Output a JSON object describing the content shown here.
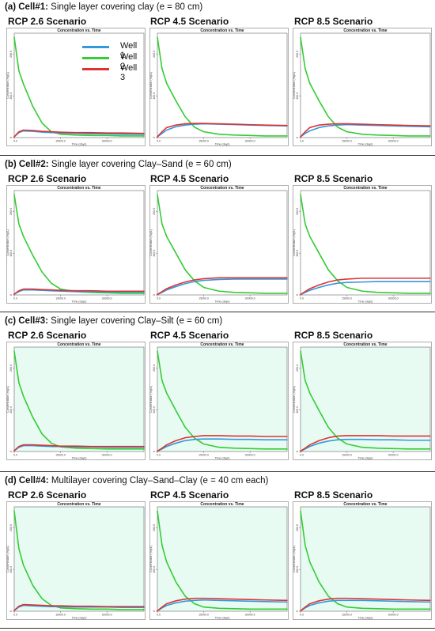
{
  "colors": {
    "well1": "#3399dd",
    "well2": "#33cc33",
    "well3": "#dd3333",
    "panel_fill_cell3": "#e8fbf3",
    "panel_fill_cell4": "#e8fbf3"
  },
  "legend": {
    "well1": "Well 1",
    "well2": "Well 2",
    "well3": "Well 3"
  },
  "plot_title": "Concentration vs. Time",
  "y_axis_label": "Concentration (mg/L)",
  "x_axis_label": "Time (days)",
  "scenarios": [
    "RCP 2.6 Scenario",
    "RCP 4.5 Scenario",
    "RCP 8.5 Scenario"
  ],
  "sections": [
    {
      "label": "(a) Cell",
      "num": "#1:",
      "desc": "Single layer covering clay (e = 80 cm)"
    },
    {
      "label": "(b) Cell",
      "num": "#2:",
      "desc": "Single layer covering Clay–Sand (e = 60 cm)"
    },
    {
      "label": "(c) Cell",
      "num": "#3:",
      "desc": "Single layer covering Clay–Silt (e = 60 cm)"
    },
    {
      "label": "(d) Cell",
      "num": "#4:",
      "desc": "Multilayer covering Clay–Sand–Clay (e = 40 cm each)"
    }
  ],
  "chart_data": [
    {
      "cell": "Cell#1",
      "scenario": "RCP 2.6 Scenario",
      "type": "line",
      "title": "Concentration vs. Time",
      "xlabel": "Time (days)",
      "ylabel": "Concentration (mg/L)",
      "x_ticks": [
        "0.0",
        "15000.0",
        "30000.0"
      ],
      "y_ticks": [
        "0",
        "100.0",
        "200.0"
      ],
      "xlim": [
        0,
        42000
      ],
      "ylim": [
        0,
        250
      ],
      "x": [
        0,
        1500,
        3000,
        6000,
        9000,
        12000,
        15000,
        20000,
        25000,
        30000,
        35000,
        42000
      ],
      "series": [
        {
          "name": "Well 1",
          "values": [
            2,
            12,
            16,
            15,
            13,
            12,
            11,
            10,
            9,
            9,
            8,
            8
          ]
        },
        {
          "name": "Well 2",
          "values": [
            240,
            160,
            128,
            75,
            35,
            14,
            8,
            6,
            5,
            5,
            4,
            4
          ]
        },
        {
          "name": "Well 3",
          "values": [
            2,
            14,
            18,
            17,
            15,
            14,
            13,
            12,
            12,
            11,
            11,
            10
          ]
        }
      ]
    },
    {
      "cell": "Cell#1",
      "scenario": "RCP 4.5 Scenario",
      "type": "line",
      "title": "Concentration vs. Time",
      "xlabel": "Time (days)",
      "ylabel": "Concentration (mg/L)",
      "x_ticks": [
        "0.0",
        "15000.0",
        "30000.0"
      ],
      "y_ticks": [
        "0",
        "100.0",
        "200.0"
      ],
      "xlim": [
        0,
        42000
      ],
      "ylim": [
        0,
        250
      ],
      "x": [
        0,
        1500,
        3000,
        6000,
        9000,
        12000,
        15000,
        20000,
        25000,
        30000,
        35000,
        42000
      ],
      "series": [
        {
          "name": "Well 1",
          "values": [
            2,
            10,
            18,
            26,
            30,
            32,
            33,
            32,
            31,
            30,
            29,
            28
          ]
        },
        {
          "name": "Well 2",
          "values": [
            240,
            165,
            130,
            88,
            50,
            25,
            14,
            8,
            6,
            5,
            4,
            4
          ]
        },
        {
          "name": "Well 3",
          "values": [
            2,
            14,
            24,
            30,
            33,
            34,
            34,
            33,
            32,
            31,
            30,
            29
          ]
        }
      ]
    },
    {
      "cell": "Cell#1",
      "scenario": "RCP 8.5 Scenario",
      "type": "line",
      "title": "Concentration vs. Time",
      "xlabel": "Time (days)",
      "ylabel": "Concentration (mg/L)",
      "x_ticks": [
        "0.0",
        "15000.0",
        "30000.0"
      ],
      "y_ticks": [
        "0",
        "100.0",
        "200.0"
      ],
      "xlim": [
        0,
        42000
      ],
      "ylim": [
        0,
        250
      ],
      "x": [
        0,
        1500,
        3000,
        6000,
        9000,
        12000,
        15000,
        20000,
        25000,
        30000,
        35000,
        42000
      ],
      "series": [
        {
          "name": "Well 1",
          "values": [
            2,
            10,
            16,
            24,
            28,
            30,
            31,
            30,
            29,
            28,
            27,
            26
          ]
        },
        {
          "name": "Well 2",
          "values": [
            240,
            165,
            130,
            88,
            50,
            25,
            14,
            8,
            6,
            5,
            4,
            4
          ]
        },
        {
          "name": "Well 3",
          "values": [
            2,
            14,
            24,
            30,
            32,
            33,
            33,
            32,
            31,
            30,
            29,
            28
          ]
        }
      ]
    },
    {
      "cell": "Cell#2",
      "scenario": "RCP 2.6 Scenario",
      "type": "line",
      "title": "Concentration vs. Time",
      "xlabel": "Time (days)",
      "ylabel": "Concentration (mg/L)",
      "x_ticks": [
        "0.0",
        "15000.0",
        "30000.0"
      ],
      "y_ticks": [
        "0",
        "100.0",
        "200.0"
      ],
      "xlim": [
        0,
        42000
      ],
      "ylim": [
        0,
        250
      ],
      "x": [
        0,
        1500,
        3000,
        6000,
        9000,
        12000,
        15000,
        20000,
        25000,
        30000,
        35000,
        42000
      ],
      "series": [
        {
          "name": "Well 1",
          "values": [
            2,
            8,
            12,
            12,
            11,
            10,
            9,
            8,
            8,
            7,
            7,
            7
          ]
        },
        {
          "name": "Well 2",
          "values": [
            240,
            170,
            140,
            95,
            55,
            28,
            14,
            8,
            6,
            5,
            4,
            4
          ]
        },
        {
          "name": "Well 3",
          "values": [
            2,
            10,
            14,
            14,
            13,
            12,
            11,
            10,
            10,
            9,
            9,
            9
          ]
        }
      ]
    },
    {
      "cell": "Cell#2",
      "scenario": "RCP 4.5 Scenario",
      "type": "line",
      "title": "Concentration vs. Time",
      "xlabel": "Time (days)",
      "ylabel": "Concentration (mg/L)",
      "x_ticks": [
        "0.0",
        "15000.0",
        "30000.0"
      ],
      "y_ticks": [
        "0",
        "100.0",
        "200.0"
      ],
      "xlim": [
        0,
        42000
      ],
      "ylim": [
        0,
        250
      ],
      "x": [
        0,
        1500,
        3000,
        6000,
        9000,
        12000,
        15000,
        20000,
        25000,
        30000,
        35000,
        42000
      ],
      "series": [
        {
          "name": "Well 1",
          "values": [
            1,
            6,
            12,
            20,
            27,
            32,
            35,
            37,
            38,
            38,
            38,
            38
          ]
        },
        {
          "name": "Well 2",
          "values": [
            240,
            170,
            140,
            100,
            60,
            34,
            18,
            9,
            6,
            5,
            4,
            4
          ]
        },
        {
          "name": "Well 3",
          "values": [
            1,
            8,
            15,
            24,
            31,
            36,
            39,
            41,
            41,
            41,
            41,
            41
          ]
        }
      ]
    },
    {
      "cell": "Cell#2",
      "scenario": "RCP 8.5 Scenario",
      "type": "line",
      "title": "Concentration vs. Time",
      "xlabel": "Time (days)",
      "ylabel": "Concentration (mg/L)",
      "x_ticks": [
        "0.0",
        "15000.0",
        "30000.0"
      ],
      "y_ticks": [
        "0",
        "100.0",
        "200.0"
      ],
      "xlim": [
        0,
        42000
      ],
      "ylim": [
        0,
        250
      ],
      "x": [
        0,
        1500,
        3000,
        6000,
        9000,
        12000,
        15000,
        20000,
        25000,
        30000,
        35000,
        42000
      ],
      "series": [
        {
          "name": "Well 1",
          "values": [
            1,
            6,
            11,
            18,
            24,
            28,
            30,
            31,
            32,
            32,
            32,
            32
          ]
        },
        {
          "name": "Well 2",
          "values": [
            240,
            170,
            140,
            100,
            60,
            34,
            18,
            9,
            6,
            5,
            4,
            4
          ]
        },
        {
          "name": "Well 3",
          "values": [
            1,
            8,
            15,
            24,
            31,
            36,
            38,
            40,
            40,
            40,
            40,
            40
          ]
        }
      ]
    },
    {
      "cell": "Cell#3",
      "scenario": "RCP 2.6 Scenario",
      "type": "line",
      "title": "Concentration vs. Time",
      "xlabel": "Time (days)",
      "ylabel": "Concentration (mg/L)",
      "x_ticks": [
        "0.0",
        "15000.0",
        "30000.0"
      ],
      "y_ticks": [
        "0",
        "100.0",
        "200.0"
      ],
      "xlim": [
        0,
        42000
      ],
      "ylim": [
        0,
        250
      ],
      "x": [
        0,
        1500,
        3000,
        6000,
        9000,
        12000,
        15000,
        20000,
        25000,
        30000,
        35000,
        42000
      ],
      "series": [
        {
          "name": "Well 1",
          "values": [
            2,
            10,
            14,
            14,
            13,
            12,
            12,
            11,
            11,
            10,
            10,
            10
          ]
        },
        {
          "name": "Well 2",
          "values": [
            240,
            165,
            132,
            82,
            42,
            20,
            11,
            8,
            7,
            6,
            6,
            6
          ]
        },
        {
          "name": "Well 3",
          "values": [
            2,
            12,
            16,
            16,
            15,
            14,
            13,
            13,
            12,
            12,
            12,
            12
          ]
        }
      ]
    },
    {
      "cell": "Cell#3",
      "scenario": "RCP 4.5 Scenario",
      "type": "line",
      "title": "Concentration vs. Time",
      "xlabel": "Time (days)",
      "ylabel": "Concentration (mg/L)",
      "x_ticks": [
        "0.0",
        "15000.0",
        "30000.0"
      ],
      "y_ticks": [
        "0",
        "100.0",
        "200.0"
      ],
      "xlim": [
        0,
        42000
      ],
      "ylim": [
        0,
        250
      ],
      "x": [
        0,
        1500,
        3000,
        6000,
        9000,
        12000,
        15000,
        20000,
        25000,
        30000,
        35000,
        42000
      ],
      "series": [
        {
          "name": "Well 1",
          "values": [
            1,
            6,
            12,
            20,
            26,
            29,
            30,
            30,
            29,
            29,
            28,
            28
          ]
        },
        {
          "name": "Well 2",
          "values": [
            240,
            170,
            140,
            98,
            58,
            32,
            18,
            10,
            8,
            7,
            6,
            6
          ]
        },
        {
          "name": "Well 3",
          "values": [
            1,
            8,
            16,
            26,
            33,
            36,
            38,
            38,
            37,
            37,
            36,
            36
          ]
        }
      ]
    },
    {
      "cell": "Cell#3",
      "scenario": "RCP 8.5 Scenario",
      "type": "line",
      "title": "Concentration vs. Time",
      "xlabel": "Time (days)",
      "ylabel": "Concentration (mg/L)",
      "x_ticks": [
        "0.0",
        "15000.0",
        "30000.0"
      ],
      "y_ticks": [
        "0",
        "100.0",
        "200.0"
      ],
      "xlim": [
        0,
        42000
      ],
      "ylim": [
        0,
        250
      ],
      "x": [
        0,
        1500,
        3000,
        6000,
        9000,
        12000,
        15000,
        20000,
        25000,
        30000,
        35000,
        42000
      ],
      "series": [
        {
          "name": "Well 1",
          "values": [
            1,
            6,
            12,
            20,
            25,
            28,
            29,
            29,
            28,
            28,
            27,
            27
          ]
        },
        {
          "name": "Well 2",
          "values": [
            240,
            170,
            140,
            98,
            58,
            32,
            18,
            10,
            8,
            7,
            6,
            6
          ]
        },
        {
          "name": "Well 3",
          "values": [
            1,
            8,
            16,
            26,
            33,
            37,
            38,
            38,
            38,
            37,
            37,
            37
          ]
        }
      ]
    },
    {
      "cell": "Cell#4",
      "scenario": "RCP 2.6 Scenario",
      "type": "line",
      "title": "Concentration vs. Time",
      "xlabel": "Time (days)",
      "ylabel": "Concentration (mg/L)",
      "x_ticks": [
        "0.0",
        "15000.0",
        "30000.0"
      ],
      "y_ticks": [
        "0",
        "100.0",
        "200.0"
      ],
      "xlim": [
        0,
        42000
      ],
      "ylim": [
        0,
        250
      ],
      "x": [
        0,
        1500,
        3000,
        6000,
        9000,
        12000,
        15000,
        20000,
        25000,
        30000,
        35000,
        42000
      ],
      "series": [
        {
          "name": "Well 1",
          "values": [
            2,
            10,
            14,
            13,
            12,
            11,
            11,
            10,
            10,
            10,
            9,
            9
          ]
        },
        {
          "name": "Well 2",
          "values": [
            240,
            150,
            110,
            62,
            30,
            14,
            8,
            6,
            5,
            5,
            4,
            4
          ]
        },
        {
          "name": "Well 3",
          "values": [
            2,
            12,
            16,
            15,
            14,
            13,
            13,
            12,
            12,
            11,
            11,
            11
          ]
        }
      ]
    },
    {
      "cell": "Cell#4",
      "scenario": "RCP 4.5 Scenario",
      "type": "line",
      "title": "Concentration vs. Time",
      "xlabel": "Time (days)",
      "ylabel": "Concentration (mg/L)",
      "x_ticks": [
        "0.0",
        "15000.0",
        "30000.0"
      ],
      "y_ticks": [
        "0",
        "100.0",
        "200.0"
      ],
      "xlim": [
        0,
        42000
      ],
      "ylim": [
        0,
        250
      ],
      "x": [
        0,
        1500,
        3000,
        6000,
        9000,
        12000,
        15000,
        20000,
        25000,
        30000,
        35000,
        42000
      ],
      "series": [
        {
          "name": "Well 1",
          "values": [
            1,
            8,
            14,
            20,
            24,
            26,
            27,
            26,
            25,
            24,
            23,
            22
          ]
        },
        {
          "name": "Well 2",
          "values": [
            240,
            158,
            118,
            70,
            36,
            18,
            10,
            7,
            6,
            5,
            5,
            5
          ]
        },
        {
          "name": "Well 3",
          "values": [
            1,
            10,
            18,
            25,
            29,
            31,
            31,
            30,
            29,
            28,
            27,
            26
          ]
        }
      ]
    },
    {
      "cell": "Cell#4",
      "scenario": "RCP 8.5 Scenario",
      "type": "line",
      "title": "Concentration vs. Time",
      "xlabel": "Time (days)",
      "ylabel": "Concentration (mg/L)",
      "x_ticks": [
        "0.0",
        "15000.0",
        "30000.0"
      ],
      "y_ticks": [
        "0",
        "100.0",
        "200.0"
      ],
      "xlim": [
        0,
        42000
      ],
      "ylim": [
        0,
        250
      ],
      "x": [
        0,
        1500,
        3000,
        6000,
        9000,
        12000,
        15000,
        20000,
        25000,
        30000,
        35000,
        42000
      ],
      "series": [
        {
          "name": "Well 1",
          "values": [
            1,
            8,
            14,
            20,
            24,
            26,
            26,
            26,
            25,
            24,
            23,
            22
          ]
        },
        {
          "name": "Well 2",
          "values": [
            240,
            158,
            118,
            70,
            36,
            18,
            10,
            7,
            6,
            5,
            5,
            5
          ]
        },
        {
          "name": "Well 3",
          "values": [
            1,
            10,
            18,
            25,
            29,
            31,
            31,
            30,
            29,
            28,
            27,
            26
          ]
        }
      ]
    }
  ]
}
